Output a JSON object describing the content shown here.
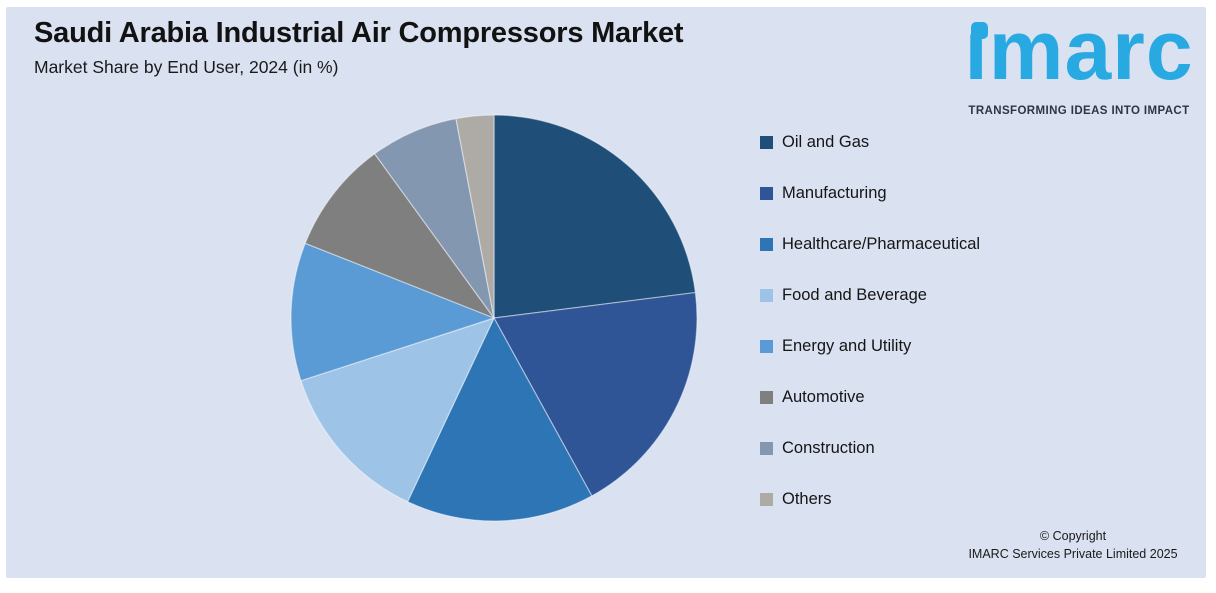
{
  "page": {
    "outer_background": "#ffffff",
    "panel_background": "#dae1f1"
  },
  "header": {
    "title": "Saudi Arabia Industrial Air Compressors Market",
    "subtitle": "Market Share by End User, 2024 (in %)"
  },
  "logo": {
    "brand": "imarc",
    "tagline": "TRANSFORMING IDEAS INTO IMPACT",
    "brand_color": "#29a9e1",
    "tagline_color": "#2b3645"
  },
  "footer": {
    "line1": "© Copyright",
    "line2": "IMARC Services Private Limited 2025"
  },
  "chart_data": {
    "type": "pie",
    "title": "Saudi Arabia Industrial Air Compressors Market",
    "subtitle": "Market Share by End User, 2024 (in %)",
    "unit": "%",
    "categories": [
      "Oil and Gas",
      "Manufacturing",
      "Healthcare/Pharmaceutical",
      "Food and Beverage",
      "Energy and Utility",
      "Automotive",
      "Construction",
      "Others"
    ],
    "values": [
      23,
      19,
      15,
      13,
      11,
      9,
      7,
      3
    ],
    "colors": [
      "#1F4E79",
      "#2F5597",
      "#2E75B6",
      "#9DC3E6",
      "#5B9BD5",
      "#7F7F7F",
      "#8497B0",
      "#AEAAA6"
    ],
    "start_angle_deg": 0,
    "direction": "clockwise",
    "legend_position": "right",
    "data_labels": false
  }
}
